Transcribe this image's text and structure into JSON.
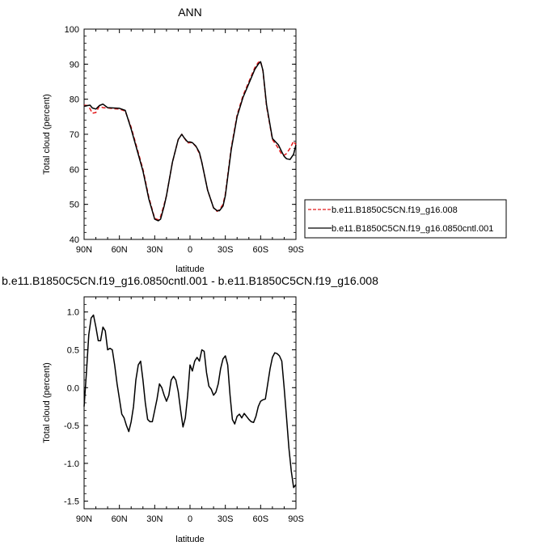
{
  "chart_data": [
    {
      "type": "line",
      "title": "ANN",
      "xlabel": "latitude",
      "ylabel": "Total cloud (percent)",
      "xlim": [
        90,
        -90
      ],
      "ylim": [
        40,
        100
      ],
      "yticks": [
        40,
        50,
        60,
        70,
        80,
        90,
        100
      ],
      "xticks": [
        90,
        60,
        30,
        0,
        -30,
        -60,
        -90
      ],
      "xtick_labels": [
        "90N",
        "60N",
        "30N",
        "0",
        "30S",
        "60S",
        "90S"
      ],
      "legend": "right-bottom",
      "series": [
        {
          "name": "b.e11.B1850C5CN.f19_g16.008",
          "color": "#e31a1c",
          "dash": "dashed",
          "x": [
            90,
            87,
            85,
            83,
            80,
            77,
            74,
            70,
            65,
            60,
            55,
            50,
            45,
            40,
            35,
            30,
            27,
            25,
            22,
            20,
            15,
            10,
            7,
            5,
            2,
            0,
            -2,
            -5,
            -8,
            -10,
            -15,
            -20,
            -23,
            -25,
            -28,
            -30,
            -35,
            -40,
            -45,
            -50,
            -55,
            -58,
            -60,
            -62,
            -65,
            -70,
            -75,
            -78,
            -80,
            -82,
            -85,
            -88,
            -90
          ],
          "y": [
            78.3,
            78.2,
            77.3,
            76,
            76.2,
            78,
            77.6,
            77.5,
            77.3,
            77.2,
            76.6,
            72,
            66,
            60,
            52,
            46,
            45.6,
            46.5,
            50,
            52.5,
            62,
            68.5,
            70,
            69,
            67.5,
            67.6,
            67.6,
            66.5,
            64.5,
            62,
            54,
            49,
            48,
            48.5,
            50,
            53,
            66,
            75.5,
            81,
            85,
            89,
            90.5,
            90.8,
            88,
            78,
            68.5,
            66,
            64.2,
            64,
            64.5,
            66,
            68,
            67
          ]
        },
        {
          "name": "b.e11.B1850C5CN.f19_g16.0850cntl.001",
          "color": "#000000",
          "dash": "solid",
          "x": [
            90,
            87,
            85,
            83,
            80,
            77,
            74,
            70,
            65,
            60,
            55,
            50,
            45,
            40,
            35,
            30,
            27,
            25,
            22,
            20,
            15,
            10,
            7,
            5,
            2,
            0,
            -2,
            -5,
            -8,
            -10,
            -15,
            -20,
            -23,
            -25,
            -28,
            -30,
            -35,
            -40,
            -45,
            -50,
            -55,
            -58,
            -60,
            -62,
            -65,
            -70,
            -75,
            -78,
            -80,
            -82,
            -85,
            -88,
            -90
          ],
          "y": [
            78,
            78.2,
            78.3,
            77.5,
            77.2,
            78.2,
            78.6,
            77.6,
            77.5,
            77.4,
            76.8,
            71.5,
            65.5,
            59.5,
            51.5,
            45.8,
            45.3,
            45.8,
            49.5,
            52.5,
            62,
            68.5,
            70,
            69,
            67.8,
            67.8,
            67.6,
            66.6,
            64.8,
            62,
            54,
            49,
            48.2,
            48.2,
            49.5,
            52.5,
            65.5,
            75,
            80.5,
            84.5,
            88.5,
            90,
            90.7,
            88.2,
            78.5,
            68.8,
            67,
            65,
            63.7,
            63,
            62.8,
            64.3,
            67
          ]
        }
      ]
    },
    {
      "type": "line",
      "title": "b.e11.B1850C5CN.f19_g16.0850cntl.001 - b.e11.B1850C5CN.f19_g16.008",
      "xlabel": "latitude",
      "ylabel": "Total cloud (percent)",
      "xlim": [
        90,
        -90
      ],
      "ylim": [
        -1.6,
        1.2
      ],
      "yticks": [
        -1.5,
        -1.0,
        -0.5,
        0.0,
        0.5,
        1.0
      ],
      "ytick_labels": [
        "-1.5",
        "-1.0",
        "-0.5",
        "0.0",
        "0.5",
        "1.0"
      ],
      "xticks": [
        90,
        60,
        30,
        0,
        -30,
        -60,
        -90
      ],
      "xtick_labels": [
        "90N",
        "60N",
        "30N",
        "0",
        "30S",
        "60S",
        "90S"
      ],
      "series": [
        {
          "color": "#000000",
          "dash": "solid",
          "x": [
            90,
            88,
            86,
            84,
            82,
            80,
            78,
            76,
            74,
            72,
            70,
            68,
            66,
            64,
            62,
            60,
            58,
            56,
            54,
            52,
            50,
            48,
            46,
            44,
            42,
            40,
            38,
            36,
            34,
            32,
            30,
            28,
            26,
            24,
            22,
            20,
            18,
            16,
            14,
            12,
            10,
            8,
            6,
            4,
            2,
            0,
            -2,
            -4,
            -6,
            -8,
            -10,
            -12,
            -14,
            -16,
            -18,
            -20,
            -22,
            -24,
            -26,
            -28,
            -30,
            -32,
            -34,
            -36,
            -38,
            -40,
            -42,
            -44,
            -46,
            -48,
            -50,
            -52,
            -54,
            -56,
            -58,
            -60,
            -62,
            -64,
            -66,
            -68,
            -70,
            -72,
            -74,
            -76,
            -78,
            -80,
            -82,
            -84,
            -86,
            -88,
            -90
          ],
          "y": [
            -0.25,
            0.2,
            0.7,
            0.92,
            0.96,
            0.8,
            0.62,
            0.62,
            0.8,
            0.75,
            0.5,
            0.52,
            0.5,
            0.3,
            0.05,
            -0.15,
            -0.35,
            -0.4,
            -0.5,
            -0.58,
            -0.45,
            -0.25,
            0.1,
            0.3,
            0.35,
            0.1,
            -0.2,
            -0.42,
            -0.45,
            -0.45,
            -0.3,
            -0.15,
            0.05,
            0.0,
            -0.1,
            -0.18,
            -0.1,
            0.1,
            0.15,
            0.1,
            -0.05,
            -0.3,
            -0.52,
            -0.4,
            -0.1,
            0.3,
            0.22,
            0.35,
            0.4,
            0.35,
            0.5,
            0.48,
            0.2,
            0.02,
            -0.02,
            -0.1,
            -0.06,
            0.05,
            0.25,
            0.38,
            0.42,
            0.3,
            -0.1,
            -0.42,
            -0.48,
            -0.38,
            -0.35,
            -0.4,
            -0.34,
            -0.38,
            -0.42,
            -0.45,
            -0.46,
            -0.38,
            -0.25,
            -0.18,
            -0.16,
            -0.15,
            0.05,
            0.25,
            0.4,
            0.46,
            0.45,
            0.42,
            0.35,
            0.0,
            -0.4,
            -0.8,
            -1.1,
            -1.32,
            -1.28
          ]
        }
      ]
    }
  ]
}
